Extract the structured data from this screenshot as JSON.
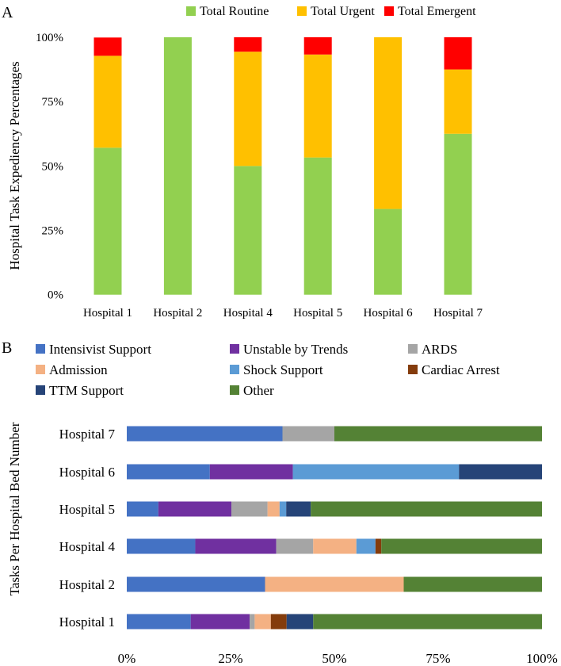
{
  "chart_data": [
    {
      "panel_label": "A",
      "type": "bar",
      "stacked": true,
      "orientation": "vertical",
      "title": "",
      "xlabel": "",
      "ylabel": "Hospital Task Expediency Percentages",
      "ylim": [
        0,
        100
      ],
      "yticks": [
        "0%",
        "25%",
        "50%",
        "75%",
        "100%"
      ],
      "legend_position": "top",
      "categories": [
        "Hospital 1",
        "Hospital 2",
        "Hospital 4",
        "Hospital 5",
        "Hospital 6",
        "Hospital 7"
      ],
      "series": [
        {
          "name": "Total Routine",
          "color": "#92D050",
          "values": [
            57.1,
            100,
            50.0,
            53.3,
            33.3,
            62.5
          ]
        },
        {
          "name": "Total Urgent",
          "color": "#FFC000",
          "values": [
            35.7,
            0,
            44.4,
            40.0,
            66.7,
            25.0
          ]
        },
        {
          "name": "Total Emergent",
          "color": "#FF0000",
          "values": [
            7.1,
            0,
            5.6,
            6.7,
            0,
            12.5
          ]
        }
      ]
    },
    {
      "panel_label": "B",
      "type": "bar",
      "stacked": true,
      "orientation": "horizontal",
      "title": "",
      "xlabel": "",
      "ylabel": "Tasks Per Hospital Bed Number",
      "xlim": [
        0,
        100
      ],
      "xticks": [
        "0%",
        "25%",
        "50%",
        "75%",
        "100%"
      ],
      "legend_position": "top",
      "categories": [
        "Hospital 1",
        "Hospital 2",
        "Hospital 4",
        "Hospital 5",
        "Hospital 6",
        "Hospital 7"
      ],
      "series": [
        {
          "name": "Intensivist Support",
          "color": "#4472C4",
          "values": [
            15.4,
            33.3,
            16.5,
            7.6,
            20.0,
            37.5
          ]
        },
        {
          "name": "Unstable by Trends",
          "color": "#7030A0",
          "values": [
            14.2,
            0,
            19.5,
            17.6,
            20.0,
            0
          ]
        },
        {
          "name": "ARDS",
          "color": "#A5A5A5",
          "values": [
            1.2,
            0,
            8.9,
            8.7,
            0,
            12.5
          ]
        },
        {
          "name": "Admission",
          "color": "#F4B183",
          "values": [
            3.9,
            33.4,
            10.4,
            2.9,
            0,
            0
          ]
        },
        {
          "name": "Shock Support",
          "color": "#5B9BD5",
          "values": [
            0,
            0,
            4.6,
            1.6,
            40.0,
            0
          ]
        },
        {
          "name": "Cardiac Arrest",
          "color": "#843C0C",
          "values": [
            3.8,
            0,
            1.4,
            0,
            0,
            0
          ]
        },
        {
          "name": "TTM Support",
          "color": "#264478",
          "values": [
            6.4,
            0,
            0,
            5.9,
            20.0,
            0
          ]
        },
        {
          "name": "Other",
          "color": "#548235",
          "values": [
            55.1,
            33.3,
            38.7,
            55.7,
            0,
            50.0
          ]
        }
      ]
    }
  ]
}
